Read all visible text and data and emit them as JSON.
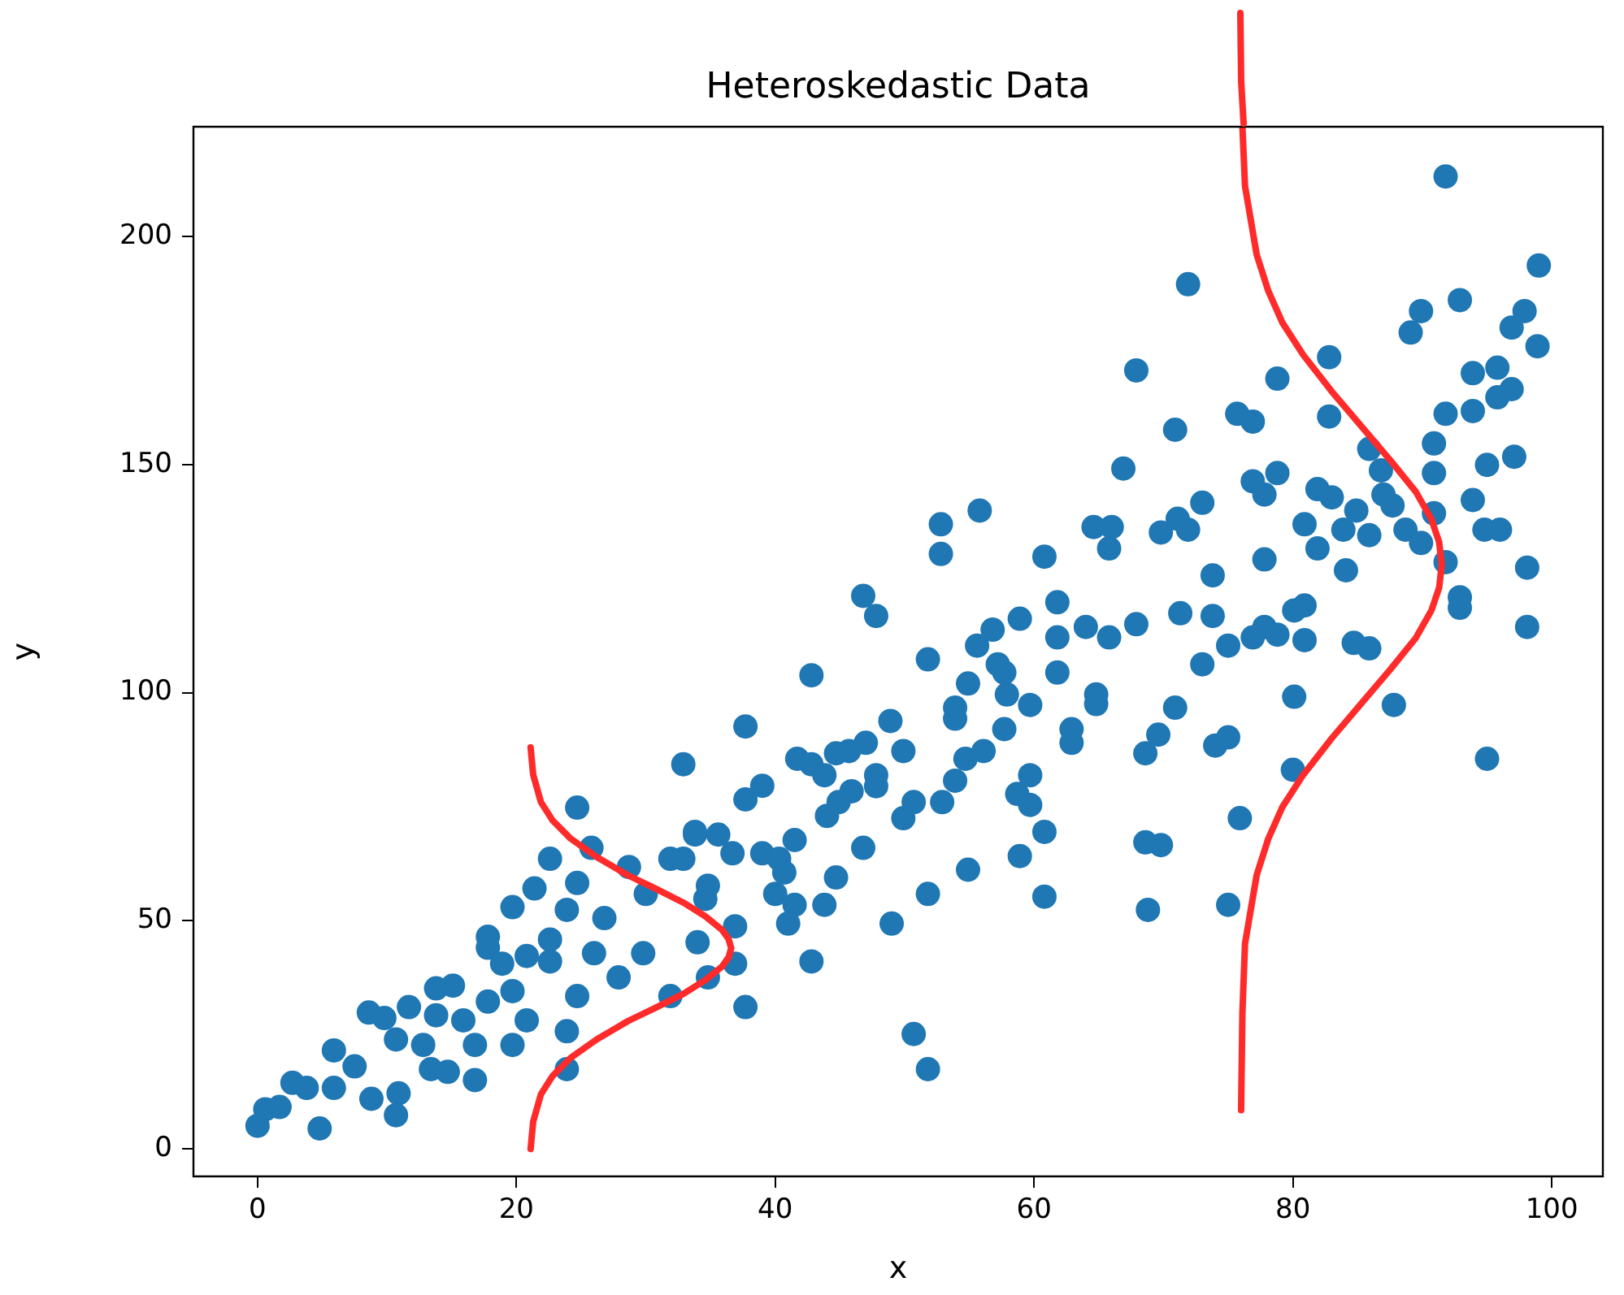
{
  "chart_data": {
    "type": "scatter",
    "title": "Heteroskedastic Data",
    "xlabel": "x",
    "ylabel": "y",
    "xlim": [
      -4.95,
      103.95
    ],
    "ylim": [
      -6,
      224
    ],
    "xticks": [
      0,
      20,
      40,
      60,
      80,
      100
    ],
    "yticks": [
      0,
      50,
      100,
      150,
      200
    ],
    "grid": false,
    "legend": false,
    "marker": "circle",
    "series": [
      {
        "color": "#1f77b4",
        "x": [
          0,
          0.6,
          1.7,
          2.7,
          3.8,
          4.8,
          5.9,
          5.9,
          7.5,
          8.6,
          9.8,
          8.8,
          10.7,
          10.7,
          11.7,
          10.9,
          12.8,
          13.8,
          13.8,
          15.1,
          15.9,
          16.8,
          16.8,
          14.7,
          13.4,
          17.8,
          17.8,
          18.9,
          19.7,
          17.8,
          19.7,
          19.7,
          20.8,
          20.8,
          21.4,
          22.6,
          22.6,
          22.6,
          23.9,
          24.7,
          24.7,
          25.8,
          24.7,
          23.9,
          23.9,
          26.8,
          26,
          28.7,
          27.9,
          30,
          29.8,
          31.9,
          32.9,
          32.9,
          31.9,
          33.8,
          34,
          34.6,
          37.7,
          42.8,
          46.8,
          47.8,
          52.8,
          52.8,
          55.8,
          51.8,
          60.8,
          61.8,
          61.8,
          61.8,
          64,
          64.6,
          66,
          65.8,
          66.9,
          65.8,
          67.9,
          64.8,
          64.8,
          69.8,
          71.1,
          71.3,
          70.9,
          69.6,
          68.6,
          68.6,
          69.8,
          68.8,
          62.9,
          62.9,
          59.7,
          57.7,
          57.9,
          57.2,
          55.6,
          56.8,
          58.9,
          54.9,
          53.9,
          53.9,
          57.7,
          56.1,
          54.7,
          53.9,
          52.9,
          59.7,
          58.7,
          59.7,
          60.8,
          58.9,
          60.8,
          54.9,
          51.8,
          48.9,
          49.9,
          47,
          45.7,
          44.7,
          41.7,
          42.8,
          43.8,
          47.8,
          47.8,
          45.9,
          44.9,
          44,
          50.7,
          49.9,
          39,
          37.7,
          33.8,
          35.6,
          36.7,
          39,
          40.3,
          41.5,
          40.7,
          40,
          41.5,
          41,
          43.8,
          44.7,
          46.8,
          42.8,
          49,
          34.8,
          36.9,
          36.9,
          34.8,
          37.7,
          50.7,
          51.8,
          91.8,
          99,
          71.9,
          92.9,
          89.9,
          89.1,
          97.9,
          96.9,
          98.9,
          67.9,
          78.8,
          82.8,
          93.9,
          95.8,
          96.9,
          95.8,
          93.9,
          91.8,
          82.8,
          75.7,
          76.9,
          70.9,
          90.9,
          90.9,
          85.9,
          86.8,
          87,
          87.7,
          88.7,
          89.9,
          90.9,
          91.8,
          95,
          97.1,
          93.9,
          94.8,
          96,
          98.1,
          98.1,
          92.9,
          92.9,
          95,
          87.8,
          76.9,
          78.8,
          77.8,
          81.9,
          83,
          84.9,
          83.9,
          85.9,
          80.9,
          81.9,
          84.1,
          77.8,
          73,
          71.9,
          73.8,
          73.8,
          75,
          76.9,
          77.8,
          78.8,
          80.1,
          80.9,
          80.9,
          84.7,
          85.9,
          73,
          80.1,
          74,
          75,
          80,
          75.9,
          75
        ],
        "values": [
          5.1,
          8.7,
          9.2,
          14.5,
          13.4,
          4.5,
          21.6,
          13.4,
          18.1,
          29.9,
          28.7,
          11,
          7.4,
          24,
          31.1,
          12.2,
          22.8,
          29.3,
          35.2,
          35.8,
          28.2,
          22.8,
          15.1,
          16.9,
          17.5,
          46.5,
          44.1,
          40.6,
          34.6,
          32.3,
          22.8,
          53,
          42.3,
          28.2,
          57.1,
          63.6,
          45.9,
          41.1,
          52.4,
          58.3,
          74.8,
          66,
          33.5,
          25.8,
          17.5,
          50.6,
          42.9,
          61.8,
          37.6,
          55.9,
          42.9,
          63.6,
          84.3,
          63.6,
          33.5,
          68.9,
          45.3,
          54.8,
          92.6,
          103.8,
          121.2,
          116.8,
          136.9,
          130.4,
          139.9,
          107.3,
          129.8,
          119.8,
          112.1,
          104.4,
          114.4,
          136.3,
          136.3,
          131.6,
          149.1,
          112.1,
          115,
          99.6,
          97.5,
          135.1,
          138.1,
          117.4,
          96.7,
          90.8,
          86.7,
          67.2,
          66.6,
          52.4,
          92,
          89,
          97.3,
          104.4,
          99.6,
          106.2,
          110.3,
          113.8,
          116.2,
          102,
          96.7,
          94.3,
          92,
          87.2,
          85.5,
          80.7,
          76,
          81.9,
          77.8,
          75.4,
          69.5,
          64.2,
          55.3,
          61.2,
          55.9,
          93.8,
          87.2,
          89,
          87.2,
          86.7,
          85.5,
          84.3,
          81.9,
          81.9,
          79.5,
          78.4,
          76,
          73,
          76,
          72.5,
          79.6,
          76.6,
          69.5,
          68.9,
          64.8,
          64.8,
          63.6,
          67.7,
          60.6,
          55.9,
          53.5,
          49.4,
          53.5,
          59.5,
          66,
          41.1,
          49.4,
          57.7,
          48.8,
          40.6,
          37.6,
          31.1,
          25.2,
          17.5,
          213.1,
          193.6,
          189.5,
          186,
          183.6,
          178.9,
          183.6,
          180,
          175.9,
          170.6,
          168.8,
          173.5,
          170,
          171.2,
          166.5,
          164.7,
          161.7,
          161.1,
          160.5,
          161.1,
          159.4,
          157.6,
          154.6,
          148.1,
          153.4,
          148.7,
          143.4,
          141,
          135.7,
          132.8,
          139.3,
          128.6,
          149.9,
          151.7,
          142.2,
          135.7,
          135.7,
          127.4,
          114.4,
          120.9,
          118.6,
          85.5,
          97.3,
          146.3,
          148.1,
          143.4,
          144.6,
          142.8,
          139.9,
          135.7,
          134.5,
          136.9,
          131.6,
          126.8,
          129.2,
          141.6,
          135.7,
          125.7,
          116.8,
          110.3,
          112.1,
          114.4,
          112.7,
          118,
          119.1,
          111.5,
          110.9,
          109.7,
          106.2,
          99.1,
          88.4,
          90.2,
          83.1,
          72.5,
          53.5
        ]
      },
      {
        "type": "line",
        "marker": "none",
        "color": "#ff2a2a",
        "x": [
          21.1,
          21.3,
          21.9,
          22.8,
          24.2,
          26.2,
          28.6,
          30.8,
          32.9,
          34.6,
          35.9,
          36.4,
          36.6,
          36.4,
          35.9,
          34.6,
          32.9,
          30.8,
          28.6,
          26.2,
          24.2,
          22.8,
          21.9,
          21.3,
          21.1
        ],
        "values": [
          0,
          6,
          12,
          16,
          20,
          24,
          28,
          31,
          34,
          37,
          40,
          42,
          44,
          46,
          48,
          51,
          54,
          57,
          60,
          64,
          68,
          72,
          76,
          82,
          88
        ]
      },
      {
        "type": "line",
        "marker": "none",
        "color": "#ff2a2a",
        "x": [
          76,
          76.1,
          76.3,
          77.2,
          78.1,
          79.2,
          80.8,
          83,
          85.1,
          87.5,
          89.5,
          90.7,
          91.3,
          91.5,
          91.3,
          90.7,
          89.5,
          87.5,
          85.1,
          83,
          80.8,
          79.2,
          78.1,
          77.2,
          76.3,
          76.1
        ],
        "values": [
          8.5,
          30,
          45,
          60,
          68,
          75,
          82,
          90,
          97,
          105,
          112,
          118,
          123,
          128,
          133,
          138,
          144,
          151,
          159,
          166,
          174,
          181,
          188,
          196,
          211,
          224
        ]
      }
    ]
  }
}
